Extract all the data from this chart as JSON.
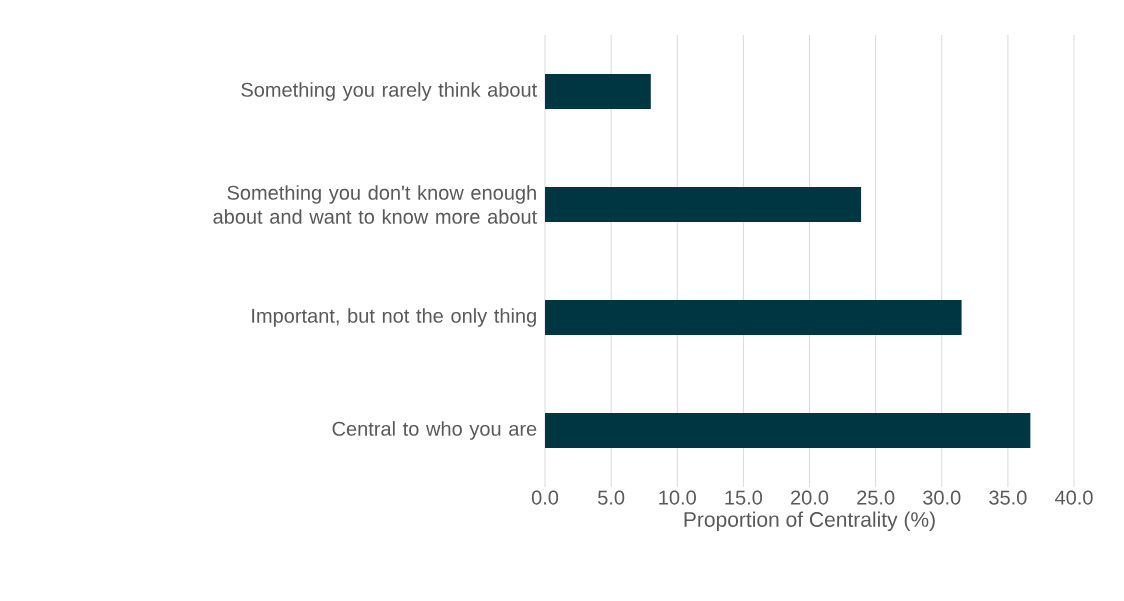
{
  "chart_data": {
    "type": "bar",
    "orientation": "horizontal",
    "xlabel": "Proportion of Centrality (%)",
    "categories": [
      "Something you rarely think about",
      "Something you don't know enough about and want to know more about",
      "Important, but not the only thing",
      "Central to who you are"
    ],
    "values": [
      8.0,
      23.9,
      31.5,
      36.7
    ],
    "color": "#003642",
    "xlim": [
      0,
      40
    ],
    "xticks": [
      {
        "value": 0,
        "label": "0.0"
      },
      {
        "value": 5,
        "label": "5.0"
      },
      {
        "value": 10,
        "label": "10.0"
      },
      {
        "value": 15,
        "label": "15.0"
      },
      {
        "value": 20,
        "label": "20.0"
      },
      {
        "value": 25,
        "label": "25.0"
      },
      {
        "value": 30,
        "label": "30.0"
      },
      {
        "value": 35,
        "label": "35.0"
      },
      {
        "value": 40,
        "label": "40.0"
      }
    ],
    "grid": "x"
  }
}
